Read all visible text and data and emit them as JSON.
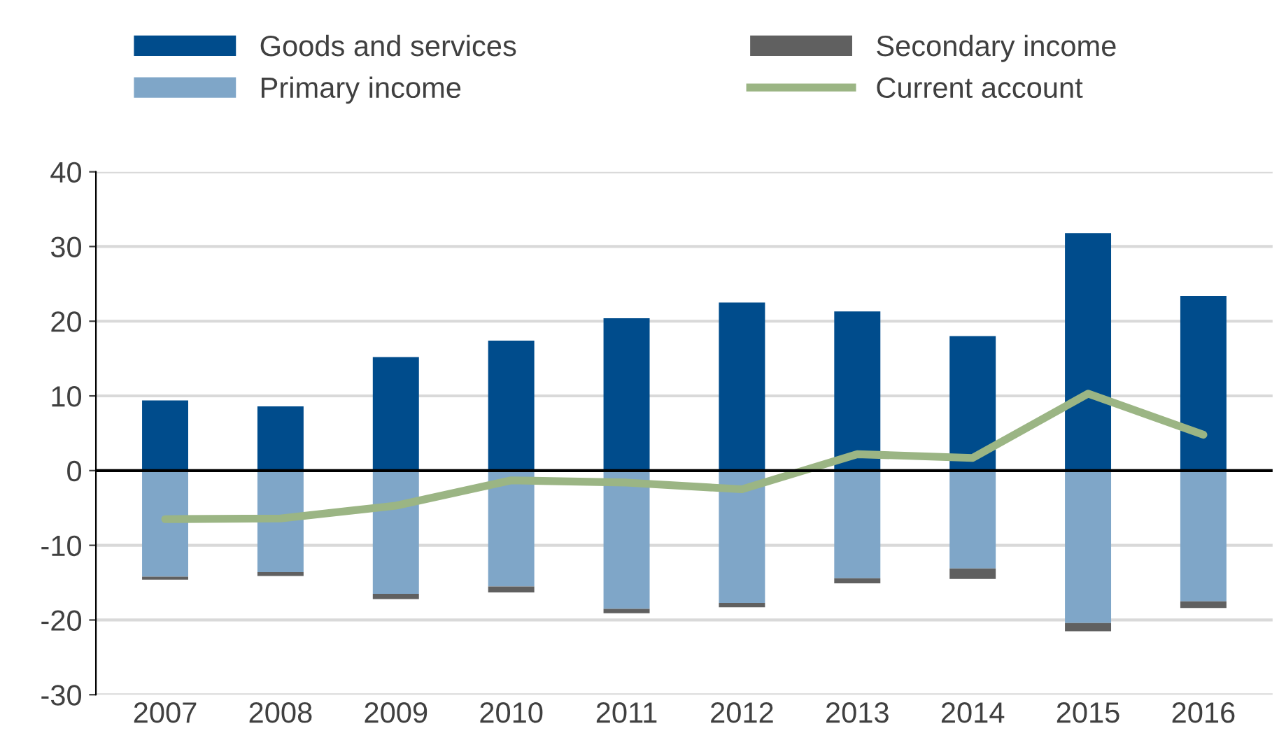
{
  "chart_data": {
    "type": "bar",
    "stacked": true,
    "categories": [
      "2007",
      "2008",
      "2009",
      "2010",
      "2011",
      "2012",
      "2013",
      "2014",
      "2015",
      "2016"
    ],
    "series": [
      {
        "name": "Goods and services",
        "color": "#004c8c",
        "values": [
          9.4,
          8.6,
          15.2,
          17.4,
          20.4,
          22.5,
          21.3,
          18.0,
          31.8,
          23.4
        ]
      },
      {
        "name": "Primary income",
        "color": "#7fa6c8",
        "values": [
          -14.2,
          -13.6,
          -16.5,
          -15.5,
          -18.5,
          -17.7,
          -14.4,
          -13.1,
          -20.4,
          -17.5
        ]
      },
      {
        "name": "Secondary income",
        "color": "#606060",
        "values": [
          -0.4,
          -0.5,
          -0.7,
          -0.8,
          -0.6,
          -0.6,
          -0.7,
          -1.4,
          -1.1,
          -0.9
        ]
      },
      {
        "name": "Current account",
        "color": "#9bb584",
        "type": "line",
        "values": [
          -6.5,
          -6.4,
          -4.7,
          -1.3,
          -1.6,
          -2.5,
          2.2,
          1.7,
          10.3,
          4.8
        ]
      }
    ],
    "ylim": [
      -30,
      40
    ],
    "yticks": [
      -30,
      -20,
      -10,
      0,
      10,
      20,
      30,
      40
    ],
    "grid": "y",
    "legend": "top",
    "marker": "none",
    "line_style": "solid"
  }
}
